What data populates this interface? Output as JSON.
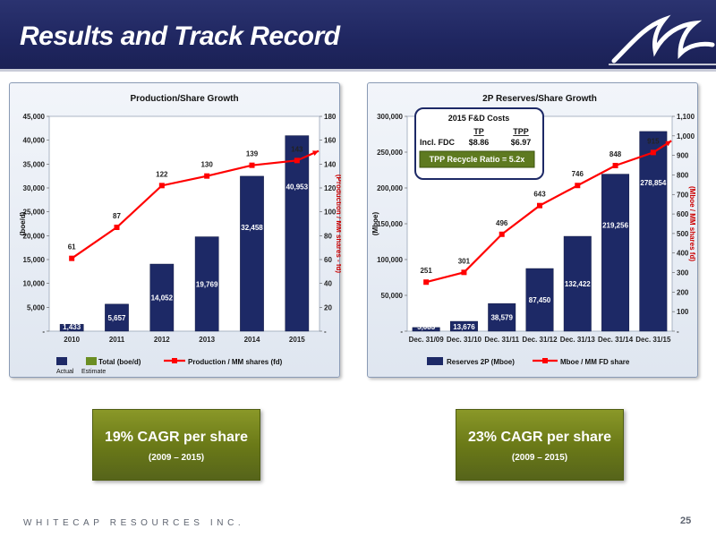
{
  "header": {
    "title": "Results and Track Record"
  },
  "colors": {
    "bar": "#1d2966",
    "line": "#ff0000",
    "estimate": "#6b8e23",
    "header": "#1f2660",
    "cagr": "#6b7a18"
  },
  "footer": {
    "company": "WHITECAP RESOURCES INC.",
    "page_number": "25"
  },
  "cagr": {
    "left": {
      "main": "19% CAGR per share",
      "sub": "(2009 – 2015)"
    },
    "right": {
      "main": "23% CAGR per share",
      "sub": "(2009 – 2015)"
    }
  },
  "fd_costs": {
    "title": "2015 F&D Costs",
    "col1": "TP",
    "col2": "TPP",
    "row_label": "Incl. FDC",
    "val1": "$8.86",
    "val2": "$6.97",
    "ratio": "TPP Recycle Ratio = 5.2x"
  },
  "chart_data": [
    {
      "type": "bar",
      "title": "Production/Share Growth",
      "categories": [
        "2010",
        "2011",
        "2012",
        "2013",
        "2014",
        "2015"
      ],
      "series": [
        {
          "name": "Total (boe/d)",
          "axis": "left",
          "values": [
            1433,
            5657,
            14052,
            19769,
            32458,
            40953
          ],
          "labels": [
            "1,433",
            "5,657",
            "14,052",
            "19,769",
            "32,458",
            "40,953"
          ]
        },
        {
          "name": "Production / MM shares (fd)",
          "axis": "right",
          "kind": "line",
          "values": [
            61,
            87,
            122,
            130,
            139,
            143
          ],
          "end_value": 151,
          "labels": [
            "61",
            "87",
            "122",
            "130",
            "139",
            "143"
          ]
        }
      ],
      "ylabel": "(boe/d)",
      "y2label": "(Production / MM shares - fd)",
      "ylim": [
        0,
        45000
      ],
      "y2lim": [
        0,
        180
      ],
      "yticks": [
        "-",
        "5,000",
        "10,000",
        "15,000",
        "20,000",
        "25,000",
        "30,000",
        "35,000",
        "40,000",
        "45,000"
      ],
      "y2ticks": [
        "-",
        "20",
        "40",
        "60",
        "80",
        "100",
        "120",
        "140",
        "160",
        "180"
      ],
      "legend_sub": [
        "Actual",
        "Estimate"
      ],
      "legend_placement": "bottom"
    },
    {
      "type": "bar",
      "title": "2P Reserves/Share Growth",
      "categories": [
        "Dec. 31/09",
        "Dec. 31/10",
        "Dec. 31/11",
        "Dec. 31/12",
        "Dec. 31/13",
        "Dec. 31/14",
        "Dec. 31/15"
      ],
      "series": [
        {
          "name": "Reserves 2P (Mboe)",
          "axis": "left",
          "values": [
            5083,
            13676,
            38579,
            87450,
            132422,
            219256,
            278854
          ],
          "labels": [
            "5,083",
            "13,676",
            "38,579",
            "87,450",
            "132,422",
            "219,256",
            "278,854"
          ]
        },
        {
          "name": "Mboe / MM FD share",
          "axis": "right",
          "kind": "line",
          "values": [
            251,
            301,
            496,
            643,
            746,
            848,
            915
          ],
          "end_value": 975,
          "labels": [
            "251",
            "301",
            "496",
            "643",
            "746",
            "848",
            "915"
          ]
        }
      ],
      "ylabel": "(Mboe)",
      "y2label": "(Mboe / MM shares fd)",
      "ylim": [
        0,
        300000
      ],
      "y2lim": [
        0,
        1100
      ],
      "yticks": [
        "-",
        "50,000",
        "100,000",
        "150,000",
        "200,000",
        "250,000",
        "300,000"
      ],
      "y2ticks": [
        "-",
        "100",
        "200",
        "300",
        "400",
        "500",
        "600",
        "700",
        "800",
        "900",
        "1,000",
        "1,100"
      ],
      "legend_placement": "bottom"
    }
  ]
}
